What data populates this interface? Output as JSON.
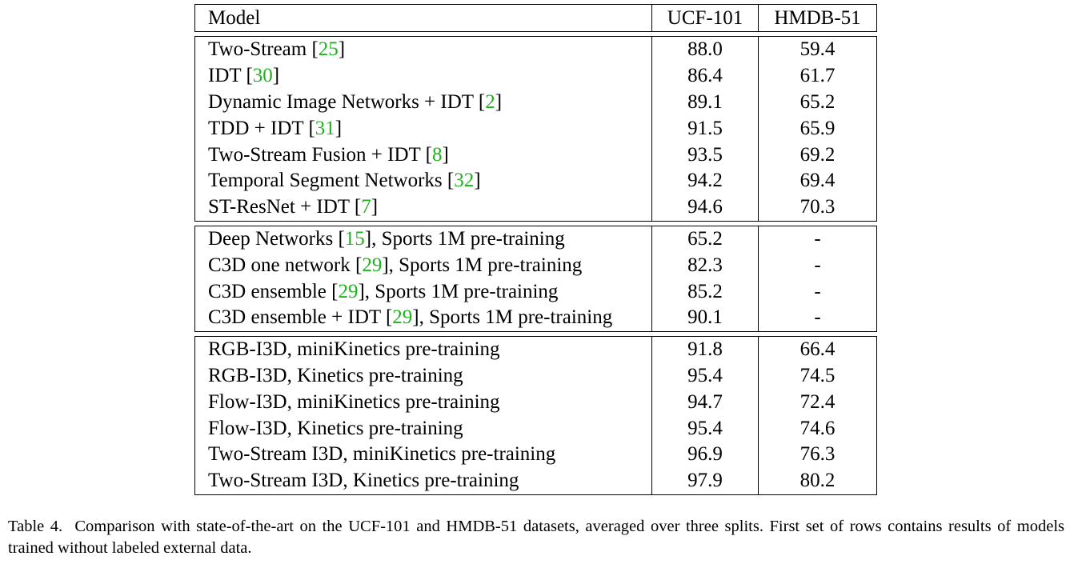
{
  "table": {
    "headers": [
      "Model",
      "UCF-101",
      "HMDB-51"
    ],
    "groups": [
      [
        {
          "name": "Two-Stream",
          "cite": "25",
          "suffix": "",
          "ucf": "88.0",
          "hmdb": "59.4"
        },
        {
          "name": "IDT",
          "cite": "30",
          "suffix": "",
          "ucf": "86.4",
          "hmdb": "61.7"
        },
        {
          "name": "Dynamic Image Networks + IDT",
          "cite": "2",
          "suffix": "",
          "ucf": "89.1",
          "hmdb": "65.2"
        },
        {
          "name": "TDD + IDT",
          "cite": "31",
          "suffix": "",
          "ucf": "91.5",
          "hmdb": "65.9"
        },
        {
          "name": "Two-Stream Fusion + IDT",
          "cite": "8",
          "suffix": "",
          "ucf": "93.5",
          "hmdb": "69.2"
        },
        {
          "name": "Temporal Segment Networks",
          "cite": "32",
          "suffix": "",
          "ucf": "94.2",
          "hmdb": "69.4"
        },
        {
          "name": "ST-ResNet + IDT",
          "cite": "7",
          "suffix": "",
          "ucf": "94.6",
          "hmdb": "70.3"
        }
      ],
      [
        {
          "name": "Deep Networks",
          "cite": "15",
          "suffix": ", Sports 1M pre-training",
          "ucf": "65.2",
          "hmdb": "-"
        },
        {
          "name": "C3D one network",
          "cite": "29",
          "suffix": ", Sports 1M pre-training",
          "ucf": "82.3",
          "hmdb": "-"
        },
        {
          "name": "C3D ensemble",
          "cite": "29",
          "suffix": ", Sports 1M pre-training",
          "ucf": "85.2",
          "hmdb": "-"
        },
        {
          "name": "C3D ensemble + IDT",
          "cite": "29",
          "suffix": ", Sports 1M pre-training",
          "ucf": "90.1",
          "hmdb": "-"
        }
      ],
      [
        {
          "name": "RGB-I3D, miniKinetics pre-training",
          "cite": "",
          "suffix": "",
          "ucf": "91.8",
          "hmdb": "66.4"
        },
        {
          "name": "RGB-I3D, Kinetics pre-training",
          "cite": "",
          "suffix": "",
          "ucf": "95.4",
          "hmdb": "74.5"
        },
        {
          "name": "Flow-I3D, miniKinetics pre-training",
          "cite": "",
          "suffix": "",
          "ucf": "94.7",
          "hmdb": "72.4"
        },
        {
          "name": "Flow-I3D, Kinetics pre-training",
          "cite": "",
          "suffix": "",
          "ucf": "95.4",
          "hmdb": "74.6"
        },
        {
          "name": "Two-Stream I3D, miniKinetics pre-training",
          "cite": "",
          "suffix": "",
          "ucf": "96.9",
          "hmdb": "76.3"
        },
        {
          "name": "Two-Stream I3D, Kinetics pre-training",
          "cite": "",
          "suffix": "",
          "ucf": "97.9",
          "hmdb": "80.2",
          "bold": true
        }
      ]
    ]
  },
  "caption": {
    "label": "Table 4.",
    "text": "Comparison with state-of-the-art on the UCF-101 and HMDB-51 datasets, averaged over three splits. First set of rows contains results of models trained without labeled external data."
  },
  "colors": {
    "citation": "#1db31d"
  }
}
